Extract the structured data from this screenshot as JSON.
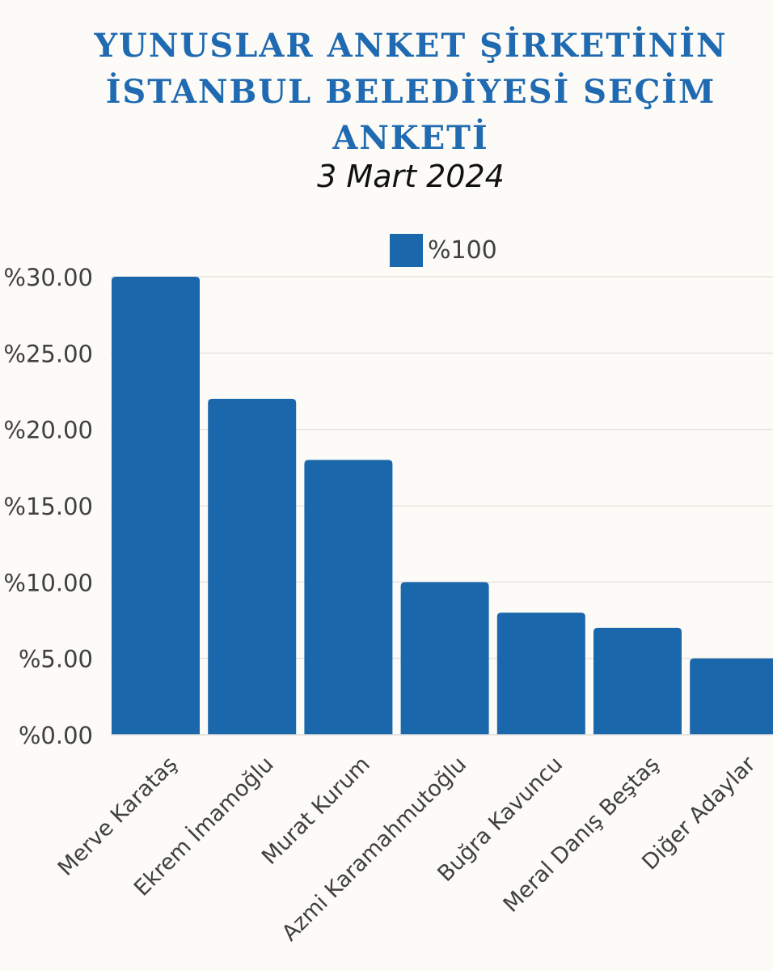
{
  "chart_data": {
    "type": "bar",
    "title_lines": [
      "YUNUSLAR ANKET ŞİRKETİNİN",
      "İSTANBUL BELEDİYESİ SEÇİM",
      "ANKETİ"
    ],
    "subtitle": "3 Mart 2024",
    "categories": [
      "Merve Karataş",
      "Ekrem İmamoğlu",
      "Murat Kurum",
      "Azmi Karamahmutoğlu",
      "Buğra Kavuncu",
      "Meral Danış Beştaş",
      "Diğer Adaylar"
    ],
    "series": [
      {
        "name": "%100",
        "values": [
          30,
          22,
          18,
          10,
          8,
          7,
          5
        ]
      }
    ],
    "ylim": [
      0,
      30
    ],
    "yticks": [
      0,
      5,
      10,
      15,
      20,
      25,
      30
    ],
    "ytick_labels": [
      "%0.00",
      "%5.00",
      "%10.00",
      "%15.00",
      "%20.00",
      "%25.00",
      "%30.00"
    ],
    "legend_position": "top",
    "grid": true,
    "bar_color": "#1b67ab"
  }
}
